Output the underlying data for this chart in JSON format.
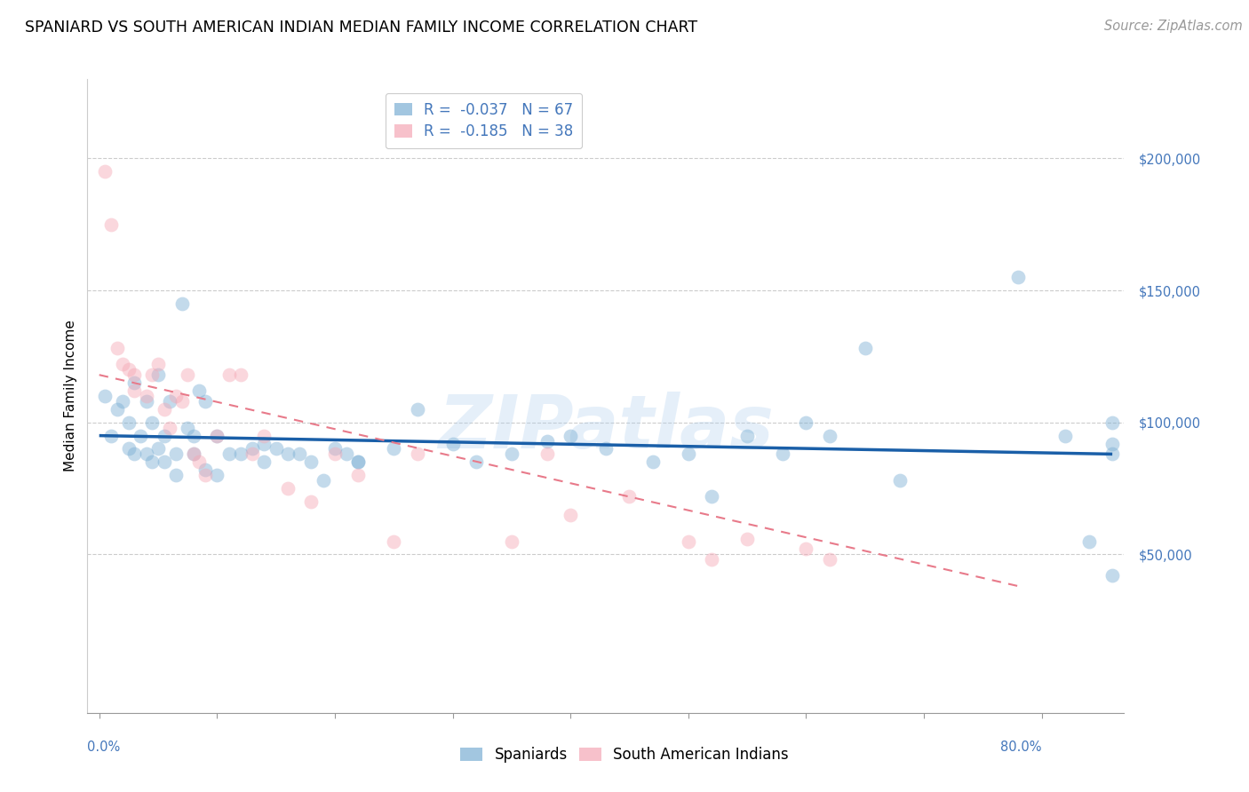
{
  "title": "SPANIARD VS SOUTH AMERICAN INDIAN MEDIAN FAMILY INCOME CORRELATION CHART",
  "source": "Source: ZipAtlas.com",
  "ylabel": "Median Family Income",
  "xlabel_ticks": [
    "0.0%",
    "80.0%"
  ],
  "xlabel_vals": [
    0.0,
    0.8
  ],
  "yticks": [
    50000,
    100000,
    150000,
    200000
  ],
  "ytick_labels": [
    "$50,000",
    "$100,000",
    "$150,000",
    "$200,000"
  ],
  "ylim": [
    -10000,
    230000
  ],
  "xlim": [
    -0.01,
    0.87
  ],
  "blue_color": "#7bafd4",
  "pink_color": "#f4a7b5",
  "trend_blue_color": "#1a5fa8",
  "trend_pink_color": "#e87a8a",
  "legend_r_color": "#4477aa",
  "legend_n_color": "#4477aa",
  "spaniards_label": "Spaniards",
  "sai_label": "South American Indians",
  "watermark": "ZIPatlas",
  "background": "#ffffff",
  "grid_color": "#cccccc",
  "axis_color": "#4477bb",
  "blue_dots_x": [
    0.005,
    0.01,
    0.015,
    0.02,
    0.025,
    0.025,
    0.03,
    0.03,
    0.035,
    0.04,
    0.04,
    0.045,
    0.045,
    0.05,
    0.05,
    0.055,
    0.055,
    0.06,
    0.065,
    0.065,
    0.07,
    0.075,
    0.08,
    0.08,
    0.085,
    0.09,
    0.09,
    0.1,
    0.1,
    0.11,
    0.12,
    0.13,
    0.14,
    0.14,
    0.15,
    0.16,
    0.17,
    0.18,
    0.19,
    0.2,
    0.21,
    0.22,
    0.25,
    0.27,
    0.3,
    0.32,
    0.35,
    0.38,
    0.4,
    0.43,
    0.47,
    0.5,
    0.52,
    0.55,
    0.58,
    0.6,
    0.62,
    0.65,
    0.68,
    0.22,
    0.78,
    0.82,
    0.84,
    0.86,
    0.86,
    0.86,
    0.86
  ],
  "blue_dots_y": [
    110000,
    95000,
    105000,
    108000,
    100000,
    90000,
    115000,
    88000,
    95000,
    108000,
    88000,
    100000,
    85000,
    118000,
    90000,
    95000,
    85000,
    108000,
    88000,
    80000,
    145000,
    98000,
    95000,
    88000,
    112000,
    108000,
    82000,
    95000,
    80000,
    88000,
    88000,
    90000,
    92000,
    85000,
    90000,
    88000,
    88000,
    85000,
    78000,
    90000,
    88000,
    85000,
    90000,
    105000,
    92000,
    85000,
    88000,
    93000,
    95000,
    90000,
    85000,
    88000,
    72000,
    95000,
    88000,
    100000,
    95000,
    128000,
    78000,
    85000,
    155000,
    95000,
    55000,
    100000,
    88000,
    42000,
    92000
  ],
  "pink_dots_x": [
    0.005,
    0.01,
    0.015,
    0.02,
    0.025,
    0.03,
    0.03,
    0.04,
    0.045,
    0.05,
    0.055,
    0.06,
    0.065,
    0.07,
    0.075,
    0.08,
    0.085,
    0.09,
    0.1,
    0.11,
    0.12,
    0.13,
    0.14,
    0.16,
    0.18,
    0.2,
    0.22,
    0.25,
    0.27,
    0.35,
    0.38,
    0.4,
    0.45,
    0.5,
    0.52,
    0.55,
    0.6,
    0.62
  ],
  "pink_dots_y": [
    195000,
    175000,
    128000,
    122000,
    120000,
    118000,
    112000,
    110000,
    118000,
    122000,
    105000,
    98000,
    110000,
    108000,
    118000,
    88000,
    85000,
    80000,
    95000,
    118000,
    118000,
    88000,
    95000,
    75000,
    70000,
    88000,
    80000,
    55000,
    88000,
    55000,
    88000,
    65000,
    72000,
    55000,
    48000,
    56000,
    52000,
    48000
  ],
  "blue_trend_x": [
    0.0,
    0.86
  ],
  "blue_trend_y": [
    95000,
    88000
  ],
  "pink_trend_x": [
    0.0,
    0.78
  ],
  "pink_trend_y": [
    118000,
    38000
  ],
  "title_fontsize": 12.5,
  "source_fontsize": 10.5,
  "axis_label_fontsize": 11,
  "tick_fontsize": 10.5,
  "legend_fontsize": 12,
  "watermark_fontsize": 60,
  "dot_size": 130,
  "dot_alpha": 0.45
}
